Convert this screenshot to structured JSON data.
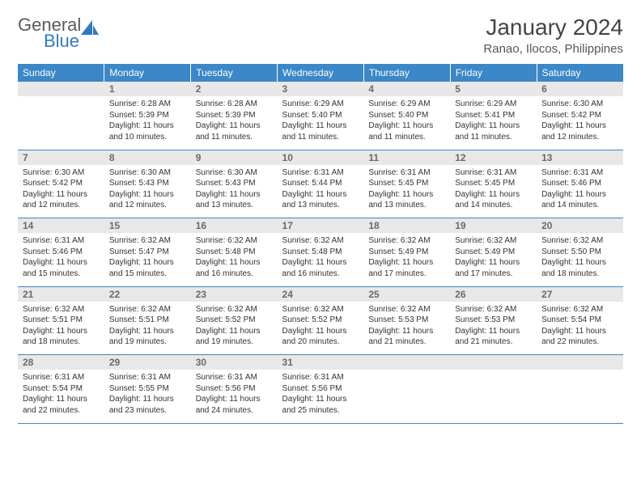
{
  "logo": {
    "general": "General",
    "blue": "Blue"
  },
  "title": "January 2024",
  "location": "Ranao, Ilocos, Philippines",
  "colors": {
    "header_bg": "#3b87c8",
    "header_text": "#ffffff",
    "daynum_bg": "#e8e8e8",
    "daynum_text": "#6a6a6a",
    "body_text": "#333333",
    "rule": "#3b87c8",
    "logo_gray": "#5a5a5a",
    "logo_blue": "#2f7bbf"
  },
  "weekdays": [
    "Sunday",
    "Monday",
    "Tuesday",
    "Wednesday",
    "Thursday",
    "Friday",
    "Saturday"
  ],
  "weeks": [
    {
      "nums": [
        "",
        "1",
        "2",
        "3",
        "4",
        "5",
        "6"
      ],
      "cells": [
        null,
        {
          "sr": "Sunrise: 6:28 AM",
          "ss": "Sunset: 5:39 PM",
          "d1": "Daylight: 11 hours",
          "d2": "and 10 minutes."
        },
        {
          "sr": "Sunrise: 6:28 AM",
          "ss": "Sunset: 5:39 PM",
          "d1": "Daylight: 11 hours",
          "d2": "and 11 minutes."
        },
        {
          "sr": "Sunrise: 6:29 AM",
          "ss": "Sunset: 5:40 PM",
          "d1": "Daylight: 11 hours",
          "d2": "and 11 minutes."
        },
        {
          "sr": "Sunrise: 6:29 AM",
          "ss": "Sunset: 5:40 PM",
          "d1": "Daylight: 11 hours",
          "d2": "and 11 minutes."
        },
        {
          "sr": "Sunrise: 6:29 AM",
          "ss": "Sunset: 5:41 PM",
          "d1": "Daylight: 11 hours",
          "d2": "and 11 minutes."
        },
        {
          "sr": "Sunrise: 6:30 AM",
          "ss": "Sunset: 5:42 PM",
          "d1": "Daylight: 11 hours",
          "d2": "and 12 minutes."
        }
      ]
    },
    {
      "nums": [
        "7",
        "8",
        "9",
        "10",
        "11",
        "12",
        "13"
      ],
      "cells": [
        {
          "sr": "Sunrise: 6:30 AM",
          "ss": "Sunset: 5:42 PM",
          "d1": "Daylight: 11 hours",
          "d2": "and 12 minutes."
        },
        {
          "sr": "Sunrise: 6:30 AM",
          "ss": "Sunset: 5:43 PM",
          "d1": "Daylight: 11 hours",
          "d2": "and 12 minutes."
        },
        {
          "sr": "Sunrise: 6:30 AM",
          "ss": "Sunset: 5:43 PM",
          "d1": "Daylight: 11 hours",
          "d2": "and 13 minutes."
        },
        {
          "sr": "Sunrise: 6:31 AM",
          "ss": "Sunset: 5:44 PM",
          "d1": "Daylight: 11 hours",
          "d2": "and 13 minutes."
        },
        {
          "sr": "Sunrise: 6:31 AM",
          "ss": "Sunset: 5:45 PM",
          "d1": "Daylight: 11 hours",
          "d2": "and 13 minutes."
        },
        {
          "sr": "Sunrise: 6:31 AM",
          "ss": "Sunset: 5:45 PM",
          "d1": "Daylight: 11 hours",
          "d2": "and 14 minutes."
        },
        {
          "sr": "Sunrise: 6:31 AM",
          "ss": "Sunset: 5:46 PM",
          "d1": "Daylight: 11 hours",
          "d2": "and 14 minutes."
        }
      ]
    },
    {
      "nums": [
        "14",
        "15",
        "16",
        "17",
        "18",
        "19",
        "20"
      ],
      "cells": [
        {
          "sr": "Sunrise: 6:31 AM",
          "ss": "Sunset: 5:46 PM",
          "d1": "Daylight: 11 hours",
          "d2": "and 15 minutes."
        },
        {
          "sr": "Sunrise: 6:32 AM",
          "ss": "Sunset: 5:47 PM",
          "d1": "Daylight: 11 hours",
          "d2": "and 15 minutes."
        },
        {
          "sr": "Sunrise: 6:32 AM",
          "ss": "Sunset: 5:48 PM",
          "d1": "Daylight: 11 hours",
          "d2": "and 16 minutes."
        },
        {
          "sr": "Sunrise: 6:32 AM",
          "ss": "Sunset: 5:48 PM",
          "d1": "Daylight: 11 hours",
          "d2": "and 16 minutes."
        },
        {
          "sr": "Sunrise: 6:32 AM",
          "ss": "Sunset: 5:49 PM",
          "d1": "Daylight: 11 hours",
          "d2": "and 17 minutes."
        },
        {
          "sr": "Sunrise: 6:32 AM",
          "ss": "Sunset: 5:49 PM",
          "d1": "Daylight: 11 hours",
          "d2": "and 17 minutes."
        },
        {
          "sr": "Sunrise: 6:32 AM",
          "ss": "Sunset: 5:50 PM",
          "d1": "Daylight: 11 hours",
          "d2": "and 18 minutes."
        }
      ]
    },
    {
      "nums": [
        "21",
        "22",
        "23",
        "24",
        "25",
        "26",
        "27"
      ],
      "cells": [
        {
          "sr": "Sunrise: 6:32 AM",
          "ss": "Sunset: 5:51 PM",
          "d1": "Daylight: 11 hours",
          "d2": "and 18 minutes."
        },
        {
          "sr": "Sunrise: 6:32 AM",
          "ss": "Sunset: 5:51 PM",
          "d1": "Daylight: 11 hours",
          "d2": "and 19 minutes."
        },
        {
          "sr": "Sunrise: 6:32 AM",
          "ss": "Sunset: 5:52 PM",
          "d1": "Daylight: 11 hours",
          "d2": "and 19 minutes."
        },
        {
          "sr": "Sunrise: 6:32 AM",
          "ss": "Sunset: 5:52 PM",
          "d1": "Daylight: 11 hours",
          "d2": "and 20 minutes."
        },
        {
          "sr": "Sunrise: 6:32 AM",
          "ss": "Sunset: 5:53 PM",
          "d1": "Daylight: 11 hours",
          "d2": "and 21 minutes."
        },
        {
          "sr": "Sunrise: 6:32 AM",
          "ss": "Sunset: 5:53 PM",
          "d1": "Daylight: 11 hours",
          "d2": "and 21 minutes."
        },
        {
          "sr": "Sunrise: 6:32 AM",
          "ss": "Sunset: 5:54 PM",
          "d1": "Daylight: 11 hours",
          "d2": "and 22 minutes."
        }
      ]
    },
    {
      "nums": [
        "28",
        "29",
        "30",
        "31",
        "",
        "",
        ""
      ],
      "cells": [
        {
          "sr": "Sunrise: 6:31 AM",
          "ss": "Sunset: 5:54 PM",
          "d1": "Daylight: 11 hours",
          "d2": "and 22 minutes."
        },
        {
          "sr": "Sunrise: 6:31 AM",
          "ss": "Sunset: 5:55 PM",
          "d1": "Daylight: 11 hours",
          "d2": "and 23 minutes."
        },
        {
          "sr": "Sunrise: 6:31 AM",
          "ss": "Sunset: 5:56 PM",
          "d1": "Daylight: 11 hours",
          "d2": "and 24 minutes."
        },
        {
          "sr": "Sunrise: 6:31 AM",
          "ss": "Sunset: 5:56 PM",
          "d1": "Daylight: 11 hours",
          "d2": "and 25 minutes."
        },
        null,
        null,
        null
      ]
    }
  ]
}
